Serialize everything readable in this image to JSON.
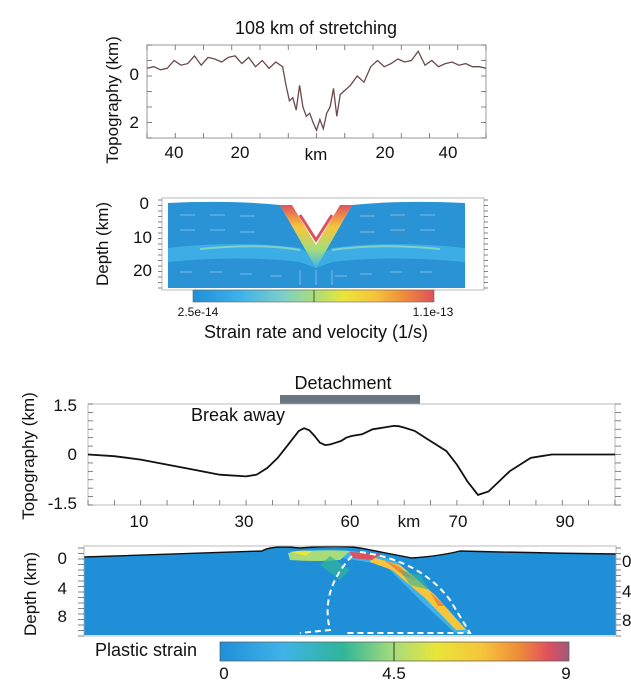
{
  "chart_data": [
    {
      "type": "line",
      "title": "108 km of stretching",
      "ylabel": "Topography (km)",
      "xlabel": "km",
      "xticks": [
        "40",
        "20",
        "20",
        "40"
      ],
      "yticks": [
        "0",
        "2"
      ],
      "ylim": [
        2.3,
        -0.7
      ],
      "x": [
        -50,
        -48,
        -46,
        -44,
        -42,
        -40,
        -38,
        -36,
        -34,
        -32,
        -30,
        -28,
        -26,
        -24,
        -22,
        -20,
        -18,
        -16,
        -14,
        -12,
        -10,
        -9,
        -8,
        -7,
        -6,
        -5,
        -4,
        -3,
        -2,
        -1,
        0,
        1,
        2,
        3,
        4,
        5,
        6,
        7,
        8,
        10,
        12,
        14,
        16,
        18,
        20,
        22,
        24,
        26,
        28,
        30,
        32,
        34,
        36,
        38,
        40,
        42,
        44,
        46,
        48,
        50
      ],
      "y": [
        0.05,
        0.0,
        0.1,
        0.05,
        -0.2,
        -0.05,
        -0.1,
        -0.35,
        -0.05,
        -0.3,
        -0.25,
        -0.15,
        -0.3,
        -0.35,
        -0.1,
        -0.3,
        0.0,
        -0.2,
        0.05,
        -0.15,
        0.0,
        0.6,
        1.1,
        1.0,
        1.4,
        0.6,
        1.3,
        1.6,
        1.5,
        1.8,
        2.05,
        1.7,
        2.0,
        1.5,
        1.3,
        0.7,
        1.6,
        0.9,
        0.8,
        0.6,
        0.3,
        0.5,
        0.0,
        -0.2,
        0.0,
        -0.1,
        -0.25,
        -0.15,
        -0.2,
        -0.5,
        -0.05,
        -0.2,
        0.0,
        -0.1,
        -0.15,
        -0.05,
        -0.1,
        0.0,
        0.0,
        0.05
      ]
    },
    {
      "type": "heatmap",
      "ylabel": "Depth (km)",
      "yticks": [
        "0",
        "10",
        "20"
      ],
      "colorbar_label": "Strain rate and velocity (1/s)",
      "colorbar_min": "2.5e-14",
      "colorbar_max": "1.1e-13",
      "colors": [
        "#1f8fd8",
        "#3fb3e8",
        "#7fd0c8",
        "#a8dc7a",
        "#e9e53a",
        "#f6c53b",
        "#ee8a3a",
        "#e0505e"
      ]
    },
    {
      "type": "line",
      "ylabel": "Topography (km)",
      "xlabel": "km",
      "xticks": [
        "10",
        "30",
        "60",
        "70",
        "90"
      ],
      "yticks": [
        "1.5",
        "0",
        "-1.5"
      ],
      "ylim": [
        -1.5,
        1.5
      ],
      "annotations": {
        "break_away": "Break away",
        "detachment": "Detachment"
      },
      "x": [
        0,
        5,
        10,
        15,
        20,
        25,
        30,
        32,
        34,
        36,
        38,
        40,
        41,
        42,
        43,
        44,
        45,
        46,
        47,
        48,
        49,
        50,
        52,
        54,
        56,
        58,
        59,
        60,
        62,
        64,
        66,
        68,
        70,
        72,
        74,
        76,
        78,
        80,
        82,
        84,
        86,
        88,
        90,
        92,
        94,
        96,
        98,
        100
      ],
      "y": [
        0.0,
        -0.05,
        -0.15,
        -0.3,
        -0.45,
        -0.6,
        -0.65,
        -0.6,
        -0.4,
        -0.1,
        0.3,
        0.7,
        0.78,
        0.72,
        0.55,
        0.35,
        0.28,
        0.3,
        0.35,
        0.4,
        0.5,
        0.55,
        0.6,
        0.75,
        0.8,
        0.85,
        0.84,
        0.8,
        0.7,
        0.5,
        0.3,
        0.1,
        -0.3,
        -0.8,
        -1.2,
        -1.1,
        -0.8,
        -0.5,
        -0.3,
        -0.1,
        -0.05,
        0.0,
        0.0,
        0.0,
        0.0,
        0.0,
        0.0,
        0.0
      ]
    },
    {
      "type": "heatmap",
      "ylabel": "Depth (km)",
      "yticks": [
        "0",
        "4",
        "8"
      ],
      "colorbar_label": "Plastic strain",
      "colorbar_ticks": [
        "0",
        "4.5",
        "9"
      ],
      "colors": [
        "#1f8fd8",
        "#3fb3e8",
        "#7fd0c8",
        "#a8dc7a",
        "#e9e53a",
        "#f6c53b",
        "#ee8a3a",
        "#e0505e",
        "#a05a7a"
      ]
    }
  ]
}
